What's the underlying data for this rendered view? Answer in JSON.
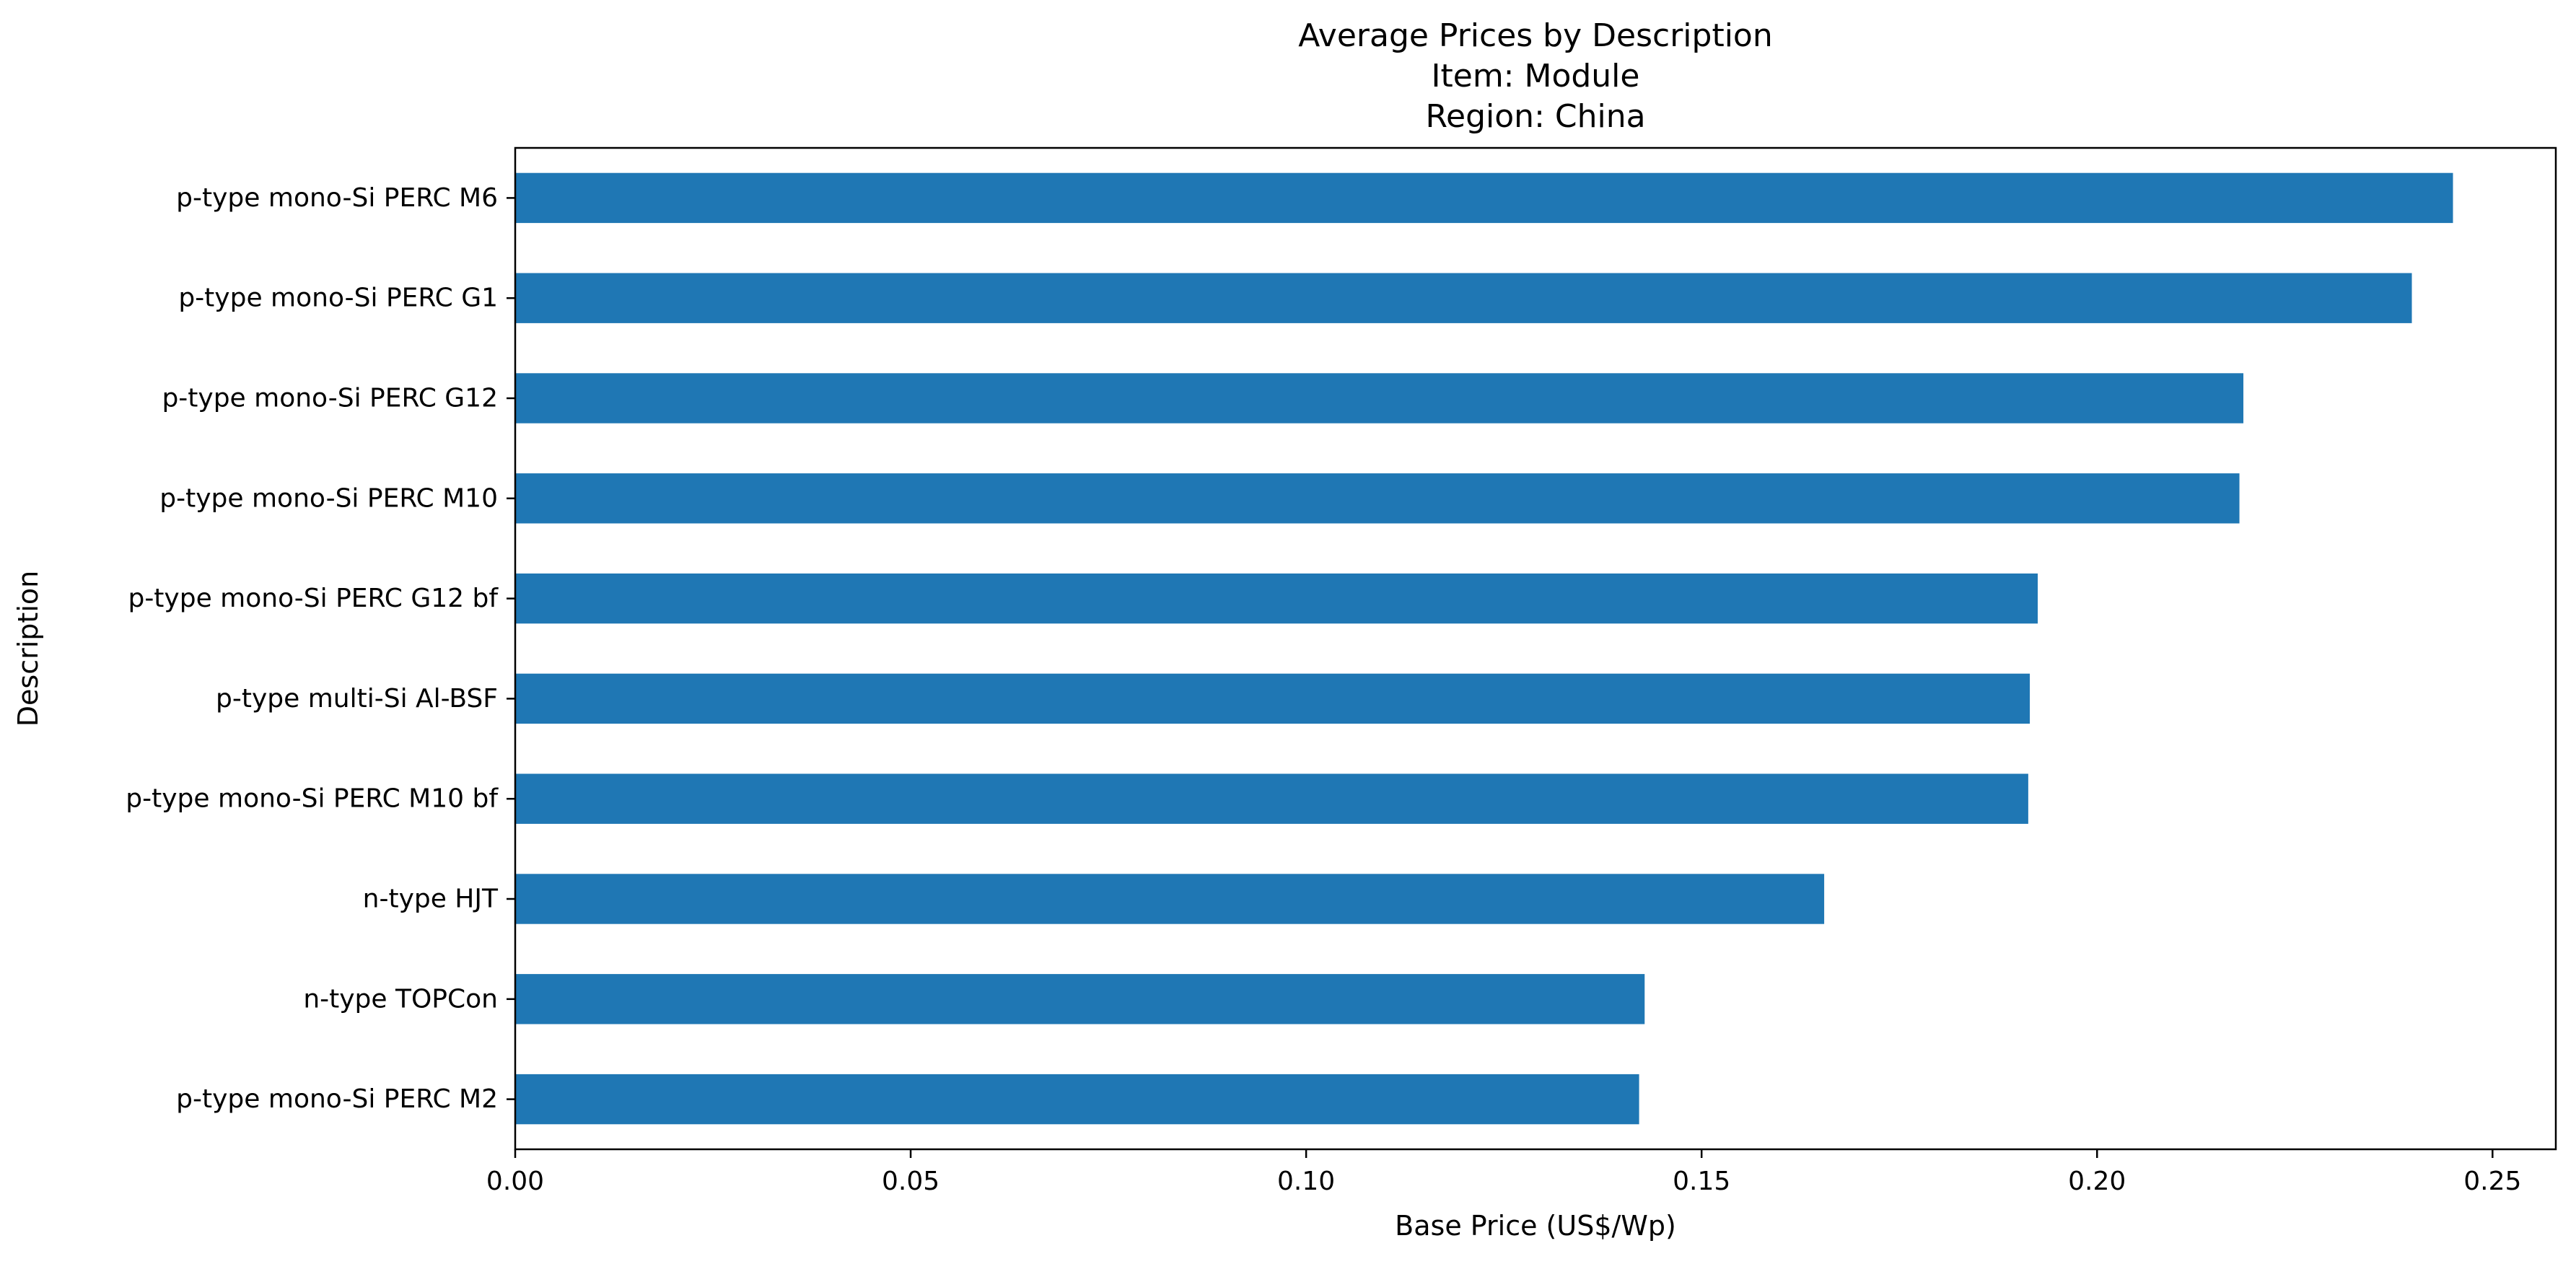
{
  "chart_data": {
    "type": "bar",
    "orientation": "horizontal",
    "title_lines": [
      "Average Prices by Description",
      "Item: Module",
      "Region: China"
    ],
    "xlabel": "Base Price (US$/Wp)",
    "ylabel": "Description",
    "categories": [
      "p-type mono-Si PERC M6",
      "p-type mono-Si PERC G1",
      "p-type mono-Si PERC G12",
      "p-type mono-Si PERC M10",
      "p-type mono-Si PERC G12 bf",
      "p-type multi-Si Al-BSF",
      "p-type mono-Si PERC M10 bf",
      "n-type HJT",
      "n-type TOPCon",
      "p-type mono-Si PERC M2"
    ],
    "values": [
      0.245,
      0.2398,
      0.2185,
      0.218,
      0.1925,
      0.1915,
      0.1913,
      0.1655,
      0.1428,
      0.1421
    ],
    "xlim": [
      0,
      0.258
    ],
    "xticks": [
      0.0,
      0.05,
      0.1,
      0.15,
      0.2,
      0.25
    ],
    "xtick_labels": [
      "0.00",
      "0.05",
      "0.10",
      "0.15",
      "0.20",
      "0.25"
    ],
    "bar_color": "#1f77b4",
    "grid": false,
    "legend": "none"
  }
}
